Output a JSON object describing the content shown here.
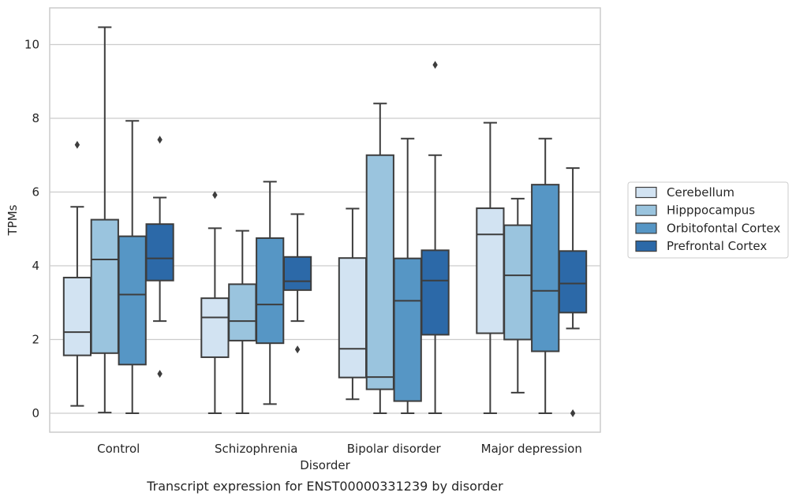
{
  "caption": "Transcript expression for ENST00000331239 by disorder",
  "chart_data": {
    "type": "box",
    "xlabel": "Disorder",
    "ylabel": "TPMs",
    "ylim": [
      -0.5,
      11
    ],
    "yticks": [
      0,
      2,
      4,
      6,
      8,
      10
    ],
    "grid": "horizontal",
    "legend_position": "right",
    "categories": [
      "Control",
      "Schizophrenia",
      "Bipolar disorder",
      "Major depression"
    ],
    "series": [
      {
        "name": "Cerebellum",
        "color": "#d2e3f2",
        "boxes": [
          {
            "whislo": 0.2,
            "q1": 1.57,
            "med": 2.2,
            "q3": 3.68,
            "whishi": 5.6,
            "fliers": [
              7.28
            ]
          },
          {
            "whislo": 0.0,
            "q1": 1.52,
            "med": 2.6,
            "q3": 3.12,
            "whishi": 5.02,
            "fliers": [
              5.92
            ]
          },
          {
            "whislo": 0.38,
            "q1": 0.97,
            "med": 1.75,
            "q3": 4.21,
            "whishi": 5.55,
            "fliers": []
          },
          {
            "whislo": 0.0,
            "q1": 2.17,
            "med": 4.85,
            "q3": 5.56,
            "whishi": 7.88,
            "fliers": []
          }
        ]
      },
      {
        "name": "Hipppocampus",
        "color": "#9ac4de",
        "boxes": [
          {
            "whislo": 0.02,
            "q1": 1.63,
            "med": 4.17,
            "q3": 5.25,
            "whishi": 10.47,
            "fliers": []
          },
          {
            "whislo": 0.0,
            "q1": 1.97,
            "med": 2.5,
            "q3": 3.5,
            "whishi": 4.95,
            "fliers": []
          },
          {
            "whislo": 0.0,
            "q1": 0.65,
            "med": 0.98,
            "q3": 7.0,
            "whishi": 8.4,
            "fliers": []
          },
          {
            "whislo": 0.56,
            "q1": 2.0,
            "med": 3.74,
            "q3": 5.1,
            "whishi": 5.82,
            "fliers": []
          }
        ]
      },
      {
        "name": "Orbitofontal Cortex",
        "color": "#5696c5",
        "boxes": [
          {
            "whislo": 0.0,
            "q1": 1.32,
            "med": 3.22,
            "q3": 4.8,
            "whishi": 7.93,
            "fliers": []
          },
          {
            "whislo": 0.25,
            "q1": 1.9,
            "med": 2.95,
            "q3": 4.75,
            "whishi": 6.28,
            "fliers": []
          },
          {
            "whislo": 0.0,
            "q1": 0.33,
            "med": 3.05,
            "q3": 4.2,
            "whishi": 7.45,
            "fliers": []
          },
          {
            "whislo": 0.0,
            "q1": 1.68,
            "med": 3.32,
            "q3": 6.2,
            "whishi": 7.45,
            "fliers": []
          }
        ]
      },
      {
        "name": "Prefrontal Cortex",
        "color": "#2c69a8",
        "boxes": [
          {
            "whislo": 2.5,
            "q1": 3.6,
            "med": 4.2,
            "q3": 5.13,
            "whishi": 5.85,
            "fliers": [
              7.42,
              1.07
            ]
          },
          {
            "whislo": 2.5,
            "q1": 3.34,
            "med": 3.58,
            "q3": 4.24,
            "whishi": 5.4,
            "fliers": [
              1.73
            ]
          },
          {
            "whislo": 0.0,
            "q1": 2.13,
            "med": 3.6,
            "q3": 4.42,
            "whishi": 7.0,
            "fliers": [
              9.45
            ]
          },
          {
            "whislo": 2.3,
            "q1": 2.73,
            "med": 3.52,
            "q3": 4.4,
            "whishi": 6.65,
            "fliers": [
              0.0
            ]
          }
        ]
      }
    ]
  }
}
